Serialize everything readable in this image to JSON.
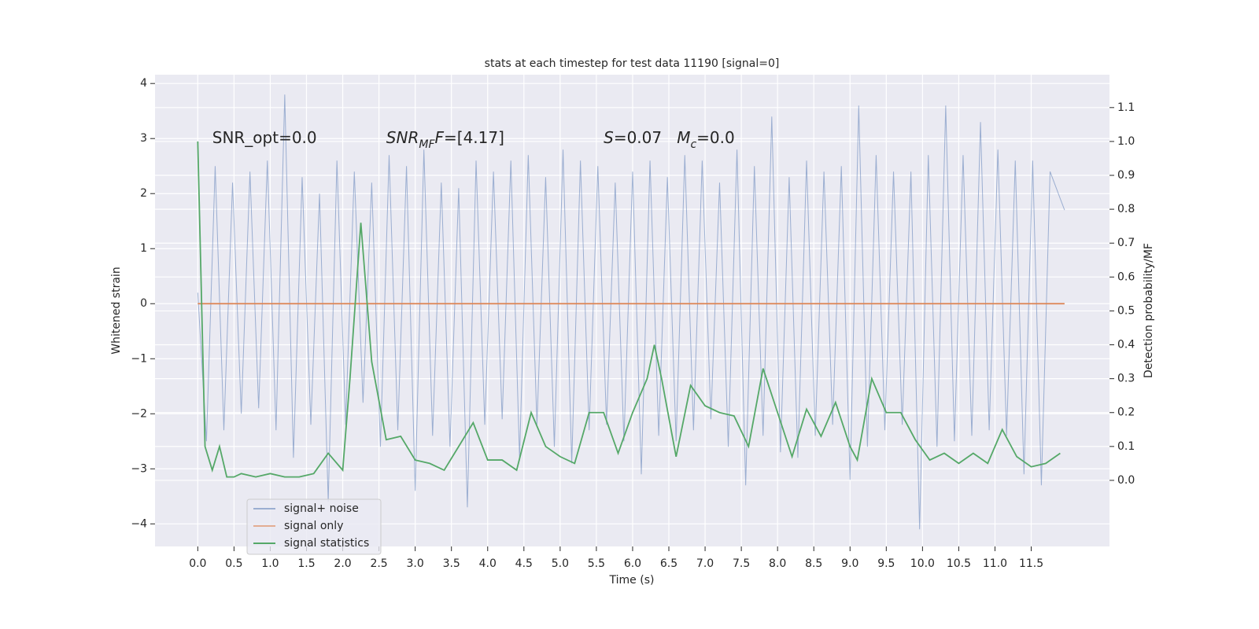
{
  "chart_data": {
    "type": "line",
    "title": "stats at each timestep for test data 11190 [signal=0]",
    "xlabel": "Time (s)",
    "ylabel": "Whitened strain",
    "y2label": "Detection probability/MF",
    "xlim": [
      -0.59,
      12.58
    ],
    "ylim": [
      -4.41,
      4.16
    ],
    "y2lim": [
      -0.195,
      1.197
    ],
    "xticks": [
      {
        "value": 0,
        "label": "0.0"
      },
      0.5,
      {
        "value": 1,
        "label": "1.0"
      },
      1.5,
      {
        "value": 2,
        "label": "2.0"
      },
      2.5,
      {
        "value": 3,
        "label": "3.0"
      },
      3.5,
      {
        "value": 4,
        "label": "4.0"
      },
      4.5,
      {
        "value": 5,
        "label": "5.0"
      },
      5.5,
      {
        "value": 6,
        "label": "6.0"
      },
      6.5,
      {
        "value": 7,
        "label": "7.0"
      },
      7.5,
      {
        "value": 8,
        "label": "8.0"
      },
      8.5,
      {
        "value": 9,
        "label": "9.0"
      },
      9.5,
      {
        "value": 10,
        "label": "10.0"
      },
      10.5,
      {
        "value": 11,
        "label": "11.0"
      },
      11.5
    ],
    "yticks": [
      {
        "value": -4,
        "label": "−4"
      },
      {
        "value": -3,
        "label": "−3"
      },
      {
        "value": -2,
        "label": "−2"
      },
      {
        "value": -1,
        "label": "−1"
      },
      0,
      1,
      2,
      3,
      4
    ],
    "y2ticks": [
      {
        "value": 0,
        "label": "0.0"
      },
      0.1,
      0.2,
      0.3,
      0.4,
      0.5,
      0.6,
      0.7,
      0.8,
      0.9,
      {
        "value": 1,
        "label": "1.0"
      },
      1.1
    ],
    "grid": true,
    "legend": "lower left",
    "annotations": [
      {
        "x": 0.2,
        "y": 3,
        "parts": [
          {
            "text": "SNR_opt=0.0"
          }
        ]
      },
      {
        "x": 2.6,
        "y": 3,
        "parts": [
          {
            "text": "SNR",
            "italic": true
          },
          {
            "text": "MF",
            "italic": true,
            "sub": true
          },
          {
            "text": "F",
            "italic": true
          },
          {
            "text": "=[4.17]"
          }
        ]
      },
      {
        "x": 5.6,
        "y": 3,
        "parts": [
          {
            "text": "S",
            "italic": true
          },
          {
            "text": "=0.07   "
          },
          {
            "text": "M",
            "italic": true
          },
          {
            "text": "c",
            "italic": true,
            "sub": true
          },
          {
            "text": "=0.0"
          }
        ]
      }
    ],
    "series": [
      {
        "name": "signal+ noise",
        "color": "#4c72b0",
        "opacity": 0.5,
        "x": [
          0.0,
          0.12,
          0.24,
          0.36,
          0.48,
          0.6,
          0.72,
          0.84,
          0.96,
          1.08,
          1.2,
          1.32,
          1.44,
          1.56,
          1.68,
          1.8,
          1.92,
          2.04,
          2.16,
          2.28,
          2.4,
          2.52,
          2.64,
          2.76,
          2.88,
          3.0,
          3.12,
          3.24,
          3.36,
          3.48,
          3.6,
          3.72,
          3.84,
          3.96,
          4.08,
          4.2,
          4.32,
          4.44,
          4.56,
          4.68,
          4.8,
          4.92,
          5.04,
          5.16,
          5.28,
          5.4,
          5.52,
          5.64,
          5.76,
          5.88,
          6.0,
          6.12,
          6.24,
          6.36,
          6.48,
          6.6,
          6.72,
          6.84,
          6.96,
          7.08,
          7.2,
          7.32,
          7.44,
          7.56,
          7.68,
          7.8,
          7.92,
          8.04,
          8.16,
          8.28,
          8.4,
          8.52,
          8.64,
          8.76,
          8.88,
          9.0,
          9.12,
          9.24,
          9.36,
          9.48,
          9.6,
          9.72,
          9.84,
          9.96,
          10.08,
          10.2,
          10.32,
          10.44,
          10.56,
          10.68,
          10.8,
          10.92,
          11.04,
          11.16,
          11.28,
          11.4,
          11.52,
          11.64,
          11.76,
          11.96
        ],
        "values": [
          0.2,
          -2.5,
          2.5,
          -2.3,
          2.2,
          -2.0,
          2.4,
          -1.9,
          2.6,
          -2.3,
          3.8,
          -2.8,
          2.3,
          -2.2,
          2.0,
          -3.6,
          2.6,
          -2.2,
          2.4,
          -1.8,
          2.2,
          -2.6,
          2.7,
          -2.3,
          2.5,
          -3.4,
          2.8,
          -2.4,
          2.2,
          -2.6,
          2.1,
          -3.7,
          2.6,
          -2.2,
          2.4,
          -2.1,
          2.6,
          -2.8,
          2.7,
          -2.2,
          2.3,
          -2.6,
          2.8,
          -2.9,
          2.6,
          -2.3,
          2.5,
          -2.2,
          2.2,
          -2.5,
          2.4,
          -3.1,
          2.6,
          -2.4,
          2.3,
          -2.5,
          2.7,
          -2.3,
          2.6,
          -2.1,
          2.2,
          -2.6,
          2.8,
          -3.3,
          2.5,
          -2.4,
          3.4,
          -2.7,
          2.3,
          -2.8,
          2.6,
          -2.4,
          2.4,
          -2.2,
          2.5,
          -3.2,
          3.6,
          -2.6,
          2.7,
          -2.3,
          2.4,
          -2.2,
          2.4,
          -4.1,
          2.7,
          -2.6,
          3.6,
          -2.5,
          2.7,
          -2.4,
          3.3,
          -2.3,
          2.8,
          -2.4,
          2.6,
          -3.1,
          2.6,
          -3.3,
          2.4,
          1.7
        ]
      },
      {
        "name": "signal only",
        "color": "#dd8452",
        "x": [
          0.0,
          11.96
        ],
        "values": [
          0,
          0
        ]
      },
      {
        "name": "signal statistics",
        "color": "#55a868",
        "axis": "y2",
        "x": [
          0.0,
          0.1,
          0.2,
          0.3,
          0.4,
          0.5,
          0.6,
          0.8,
          1.0,
          1.2,
          1.4,
          1.6,
          1.8,
          2.0,
          2.1,
          2.25,
          2.4,
          2.6,
          2.8,
          3.0,
          3.2,
          3.4,
          3.6,
          3.8,
          4.0,
          4.2,
          4.4,
          4.6,
          4.8,
          5.0,
          5.2,
          5.4,
          5.6,
          5.8,
          6.0,
          6.2,
          6.3,
          6.4,
          6.6,
          6.8,
          7.0,
          7.2,
          7.4,
          7.6,
          7.8,
          8.0,
          8.2,
          8.4,
          8.6,
          8.8,
          9.0,
          9.1,
          9.3,
          9.5,
          9.7,
          9.9,
          10.1,
          10.3,
          10.5,
          10.7,
          10.9,
          11.1,
          11.3,
          11.5,
          11.7,
          11.9
        ],
        "values": [
          1.0,
          0.1,
          0.03,
          0.1,
          0.01,
          0.01,
          0.02,
          0.01,
          0.02,
          0.01,
          0.01,
          0.02,
          0.08,
          0.03,
          0.3,
          0.76,
          0.35,
          0.12,
          0.13,
          0.06,
          0.05,
          0.03,
          0.1,
          0.17,
          0.06,
          0.06,
          0.03,
          0.2,
          0.1,
          0.07,
          0.05,
          0.2,
          0.2,
          0.08,
          0.2,
          0.3,
          0.4,
          0.3,
          0.07,
          0.28,
          0.22,
          0.2,
          0.19,
          0.1,
          0.33,
          0.2,
          0.07,
          0.21,
          0.13,
          0.23,
          0.1,
          0.06,
          0.3,
          0.2,
          0.2,
          0.12,
          0.06,
          0.08,
          0.05,
          0.08,
          0.05,
          0.15,
          0.07,
          0.04,
          0.05,
          0.08
        ]
      }
    ]
  }
}
